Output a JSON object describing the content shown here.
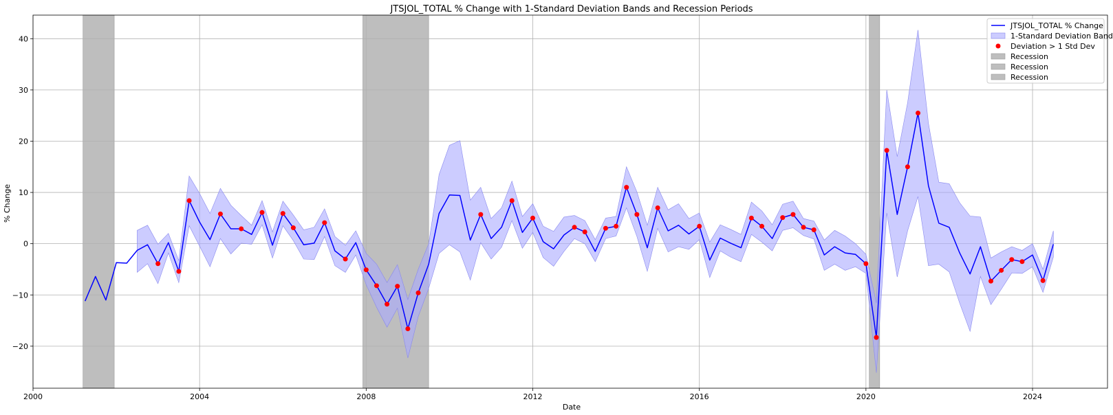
{
  "chart_data": {
    "type": "line",
    "title": "JTSJOL_TOTAL % Change with 1-Standard Deviation Bands and Recession Periods",
    "xlabel": "Date",
    "ylabel": "% Change",
    "xlim": [
      2000,
      2025.8
    ],
    "ylim": [
      -28.2,
      44.6
    ],
    "xticks": [
      2000,
      2004,
      2008,
      2012,
      2016,
      2020,
      2024
    ],
    "yticks": [
      -20,
      -10,
      0,
      10,
      20,
      30,
      40
    ],
    "grid": true,
    "legend_placement": "top-right",
    "colors": {
      "line": "#0000ff",
      "band": "#aaaaff",
      "band_edge": "#8888ee",
      "points": "#ff0000",
      "recession": "#bebebe"
    },
    "x": [
      2001.25,
      2001.5,
      2001.75,
      2002.0,
      2002.25,
      2002.5,
      2002.75,
      2003.0,
      2003.25,
      2003.5,
      2003.75,
      2004.0,
      2004.25,
      2004.5,
      2004.75,
      2005.0,
      2005.25,
      2005.5,
      2005.75,
      2006.0,
      2006.25,
      2006.5,
      2006.75,
      2007.0,
      2007.25,
      2007.5,
      2007.75,
      2008.0,
      2008.25,
      2008.5,
      2008.75,
      2009.0,
      2009.25,
      2009.5,
      2009.75,
      2010.0,
      2010.25,
      2010.5,
      2010.75,
      2011.0,
      2011.25,
      2011.5,
      2011.75,
      2012.0,
      2012.25,
      2012.5,
      2012.75,
      2013.0,
      2013.25,
      2013.5,
      2013.75,
      2014.0,
      2014.25,
      2014.5,
      2014.75,
      2015.0,
      2015.25,
      2015.5,
      2015.75,
      2016.0,
      2016.25,
      2016.5,
      2016.75,
      2017.0,
      2017.25,
      2017.5,
      2017.75,
      2018.0,
      2018.25,
      2018.5,
      2018.75,
      2019.0,
      2019.25,
      2019.5,
      2019.75,
      2020.0,
      2020.25,
      2020.5,
      2020.75,
      2021.0,
      2021.25,
      2021.5,
      2021.75,
      2022.0,
      2022.25,
      2022.5,
      2022.75,
      2023.0,
      2023.25,
      2023.5,
      2023.75,
      2024.0,
      2024.25,
      2024.5
    ],
    "series": [
      {
        "name": "JTSJOL_TOTAL % Change",
        "values": [
          -11.2,
          -6.4,
          -11.0,
          -3.7,
          -3.8,
          -1.3,
          -0.2,
          -3.9,
          0.2,
          -5.4,
          8.4,
          4.2,
          0.8,
          5.8,
          2.9,
          2.9,
          1.8,
          6.1,
          -0.3,
          5.9,
          3.1,
          -0.2,
          0.1,
          4.1,
          -1.4,
          -3.0,
          0.2,
          -5.1,
          -8.2,
          -11.8,
          -8.3,
          -16.6,
          -9.6,
          -4.0,
          5.9,
          9.5,
          9.4,
          0.7,
          5.7,
          1.0,
          3.2,
          8.4,
          2.2,
          5.0,
          0.4,
          -1.0,
          1.7,
          3.2,
          2.3,
          -1.5,
          3.0,
          3.4,
          11.0,
          5.7,
          -0.8,
          7.0,
          2.5,
          3.6,
          1.9,
          3.4,
          -3.2,
          1.1,
          0.1,
          -0.8,
          5.0,
          3.4,
          1.0,
          5.1,
          5.7,
          3.2,
          2.7,
          -2.2,
          -0.6,
          -1.8,
          -2.1,
          -3.9,
          -18.3,
          18.2,
          5.7,
          15.0,
          25.5,
          11.3,
          4.0,
          3.2,
          -1.8,
          -5.9,
          -0.6,
          -7.3,
          -5.2,
          -3.1,
          -3.5,
          -2.2,
          -7.2,
          -0.1
        ]
      },
      {
        "name": "1-Standard Deviation Band",
        "upper": [
          null,
          null,
          null,
          null,
          null,
          2.6,
          3.6,
          -0.1,
          2.0,
          -3.3,
          13.2,
          9.8,
          5.9,
          10.8,
          7.5,
          5.5,
          3.6,
          8.4,
          2.3,
          8.3,
          5.6,
          2.7,
          3.2,
          6.8,
          1.4,
          -0.3,
          2.5,
          -1.9,
          -4.0,
          -7.6,
          -4.1,
          -10.9,
          -5.0,
          0.0,
          13.5,
          19.2,
          20.1,
          8.5,
          11.0,
          4.9,
          7.0,
          12.2,
          5.3,
          7.8,
          3.4,
          2.4,
          5.2,
          5.5,
          4.5,
          0.8,
          5.0,
          5.3,
          15.0,
          10.1,
          3.6,
          11.0,
          6.6,
          7.8,
          4.9,
          6.0,
          0.3,
          3.7,
          2.8,
          1.8,
          8.1,
          6.4,
          3.7,
          7.7,
          8.3,
          4.9,
          4.4,
          0.7,
          2.6,
          1.5,
          0.0,
          -2.1,
          -11.6,
          30.0,
          17.0,
          27.5,
          41.7,
          23.5,
          12.0,
          11.7,
          8.0,
          5.4,
          5.2,
          -2.8,
          -1.6,
          -0.6,
          -1.3,
          0.0,
          -5.0,
          2.5
        ],
        "lower": [
          null,
          null,
          null,
          null,
          null,
          -5.6,
          -3.9,
          -7.8,
          -1.8,
          -7.6,
          3.5,
          -0.5,
          -4.5,
          1.0,
          -2.0,
          0.1,
          -0.1,
          3.7,
          -2.8,
          3.5,
          0.6,
          -3.0,
          -3.1,
          1.4,
          -4.3,
          -5.6,
          -2.2,
          -8.0,
          -12.4,
          -16.3,
          -12.6,
          -22.3,
          -14.2,
          -8.7,
          -1.9,
          -0.2,
          -1.6,
          -7.1,
          0.2,
          -3.0,
          -0.7,
          4.5,
          -0.9,
          2.2,
          -2.7,
          -4.4,
          -1.5,
          1.0,
          0.0,
          -3.5,
          1.0,
          1.5,
          7.0,
          1.4,
          -5.4,
          3.0,
          -1.6,
          -0.6,
          -1.1,
          0.8,
          -6.6,
          -1.4,
          -2.6,
          -3.5,
          1.8,
          0.3,
          -1.4,
          2.6,
          3.1,
          1.6,
          0.9,
          -5.2,
          -4.0,
          -5.2,
          -4.5,
          -5.8,
          -25.2,
          6.0,
          -6.5,
          2.5,
          9.2,
          -4.3,
          -4.0,
          -5.5,
          -11.6,
          -17.1,
          -6.4,
          -11.9,
          -8.9,
          -5.7,
          -5.8,
          -4.5,
          -9.5,
          -2.6
        ]
      }
    ],
    "highlight_points": {
      "name": "Deviation > 1 Std Dev",
      "x": [
        2003.0,
        2003.5,
        2003.75,
        2004.5,
        2005.0,
        2005.5,
        2006.0,
        2006.25,
        2007.0,
        2007.5,
        2008.0,
        2008.25,
        2008.5,
        2008.75,
        2009.0,
        2009.25,
        2010.75,
        2011.5,
        2012.0,
        2013.0,
        2013.25,
        2013.75,
        2014.0,
        2014.25,
        2014.5,
        2015.0,
        2016.0,
        2017.25,
        2017.5,
        2018.0,
        2018.25,
        2018.5,
        2018.75,
        2020.0,
        2020.25,
        2020.5,
        2021.0,
        2021.25,
        2023.0,
        2023.25,
        2023.5,
        2023.75,
        2024.25
      ],
      "y": [
        -3.9,
        -5.4,
        8.4,
        5.8,
        2.9,
        6.1,
        5.9,
        3.1,
        4.1,
        -3.0,
        -5.1,
        -8.2,
        -11.8,
        -8.3,
        -16.6,
        -9.6,
        5.7,
        8.4,
        5.0,
        3.2,
        2.3,
        3.0,
        3.4,
        11.0,
        5.7,
        7.0,
        3.4,
        5.0,
        3.4,
        5.1,
        5.7,
        3.2,
        2.7,
        -3.9,
        -18.3,
        18.2,
        15.0,
        25.5,
        -7.3,
        -5.2,
        -3.1,
        -3.5,
        -7.2
      ]
    },
    "recessions": [
      {
        "name": "Recession",
        "start": 2001.2,
        "end": 2001.95
      },
      {
        "name": "Recession",
        "start": 2007.92,
        "end": 2009.5
      },
      {
        "name": "Recession",
        "start": 2020.08,
        "end": 2020.33
      }
    ],
    "legend": [
      "JTSJOL_TOTAL % Change",
      "1-Standard Deviation Band",
      "Deviation > 1 Std Dev",
      "Recession",
      "Recession",
      "Recession"
    ]
  }
}
